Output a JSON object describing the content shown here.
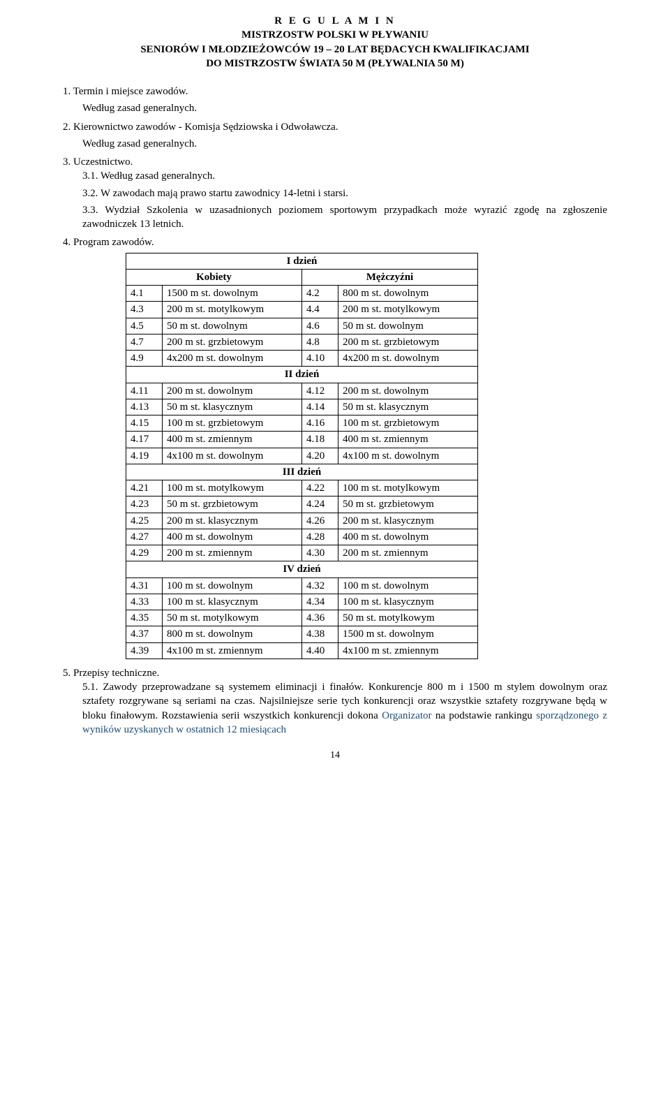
{
  "title": {
    "line1": "R E G U L A M I N",
    "line2": "MISTRZOSTW POLSKI W PŁYWANIU",
    "line3": "SENIORÓW I  MŁODZIEŻOWCÓW 19 – 20 LAT BĘDACYCH KWALIFIKACJAMI",
    "line4": "DO MISTRZOSTW ŚWIATA 50 M (PŁYWALNIA 50 M)"
  },
  "s1": {
    "h": "1. Termin i miejsce zawodów.",
    "body": "Według zasad generalnych."
  },
  "s2": {
    "h": "2. Kierownictwo zawodów - Komisja Sędziowska i Odwoławcza.",
    "body": "Według zasad generalnych."
  },
  "s3": {
    "h": "3. Uczestnictwo.",
    "p1": "3.1. Według zasad generalnych.",
    "p2": "3.2. W zawodach mają prawo startu zawodnicy 14-letni i starsi.",
    "p3": "3.3. Wydział Szkolenia w uzasadnionych poziomem sportowym przypadkach może wyrazić zgodę na zgłoszenie zawodniczek 13 letnich."
  },
  "s4": {
    "h": "4. Program zawodów."
  },
  "schedule": {
    "day_labels": {
      "d1": "I dzień",
      "d2": "II dzień",
      "d3": "III dzień",
      "d4": "IV dzień"
    },
    "headers": {
      "kobiety": "Kobiety",
      "mezczyzni": "Mężczyźni"
    },
    "rows": [
      {
        "l": "4.1",
        "le": "1500 m st. dowolnym",
        "r": "4.2",
        "re": "800 m st. dowolnym"
      },
      {
        "l": "4.3",
        "le": "200 m st. motylkowym",
        "r": "4.4",
        "re": "200 m st. motylkowym"
      },
      {
        "l": "4.5",
        "le": "50 m st. dowolnym",
        "r": "4.6",
        "re": "50 m st. dowolnym"
      },
      {
        "l": "4.7",
        "le": "200 m st. grzbietowym",
        "r": "4.8",
        "re": "200 m st. grzbietowym"
      },
      {
        "l": "4.9",
        "le": "4x200 m st. dowolnym",
        "r": "4.10",
        "re": "4x200 m st. dowolnym"
      },
      {
        "l": "4.11",
        "le": "200 m st. dowolnym",
        "r": "4.12",
        "re": "200 m st. dowolnym"
      },
      {
        "l": "4.13",
        "le": "50 m st. klasycznym",
        "r": "4.14",
        "re": "50 m st. klasycznym"
      },
      {
        "l": "4.15",
        "le": "100 m st. grzbietowym",
        "r": "4.16",
        "re": "100 m st. grzbietowym"
      },
      {
        "l": "4.17",
        "le": "400 m st. zmiennym",
        "r": "4.18",
        "re": "400 m st. zmiennym"
      },
      {
        "l": "4.19",
        "le": "4x100 m st. dowolnym",
        "r": "4.20",
        "re": "4x100 m st. dowolnym"
      },
      {
        "l": "4.21",
        "le": "100 m st. motylkowym",
        "r": "4.22",
        "re": "100 m st. motylkowym"
      },
      {
        "l": "4.23",
        "le": "50 m st. grzbietowym",
        "r": "4.24",
        "re": "50 m st. grzbietowym"
      },
      {
        "l": "4.25",
        "le": "200 m st. klasycznym",
        "r": "4.26",
        "re": "200 m st. klasycznym"
      },
      {
        "l": "4.27",
        "le": "400 m st. dowolnym",
        "r": "4.28",
        "re": "400 m st. dowolnym"
      },
      {
        "l": "4.29",
        "le": "200 m st. zmiennym",
        "r": "4.30",
        "re": "200 m st. zmiennym"
      },
      {
        "l": "4.31",
        "le": "100 m st. dowolnym",
        "r": "4.32",
        "re": "100 m st. dowolnym"
      },
      {
        "l": "4.33",
        "le": "100 m st. klasycznym",
        "r": "4.34",
        "re": "100 m st. klasycznym"
      },
      {
        "l": "4.35",
        "le": "50 m st. motylkowym",
        "r": "4.36",
        "re": "50 m st. motylkowym"
      },
      {
        "l": "4.37",
        "le": "800 m st. dowolnym",
        "r": "4.38",
        "re": "1500 m st. dowolnym"
      },
      {
        "l": "4.39",
        "le": "4x100 m st. zmiennym",
        "r": "4.40",
        "re": "4x100 m st. zmiennym"
      }
    ]
  },
  "s5": {
    "h": "5. Przepisy techniczne.",
    "p1_prefix": "5.1. Zawody przeprowadzane są systemem eliminacji i finałów. Konkurencje 800 m i 1500 m stylem dowolnym oraz sztafety rozgrywane są seriami na czas. Najsilniejsze serie tych konkurencji oraz wszystkie sztafety rozgrywane będą w bloku finałowym. Rozstawienia serii wszystkich konkurencji dokona ",
    "p1_org": "Organizator",
    "p1_mid": " na podstawie rankingu ",
    "p1_sfx": "sporządzonego z wyników uzyskanych w ostatnich 12 miesiącach"
  },
  "page_number": "14",
  "colors": {
    "text": "#000000",
    "bg": "#ffffff",
    "accent": "#1f4e79"
  }
}
